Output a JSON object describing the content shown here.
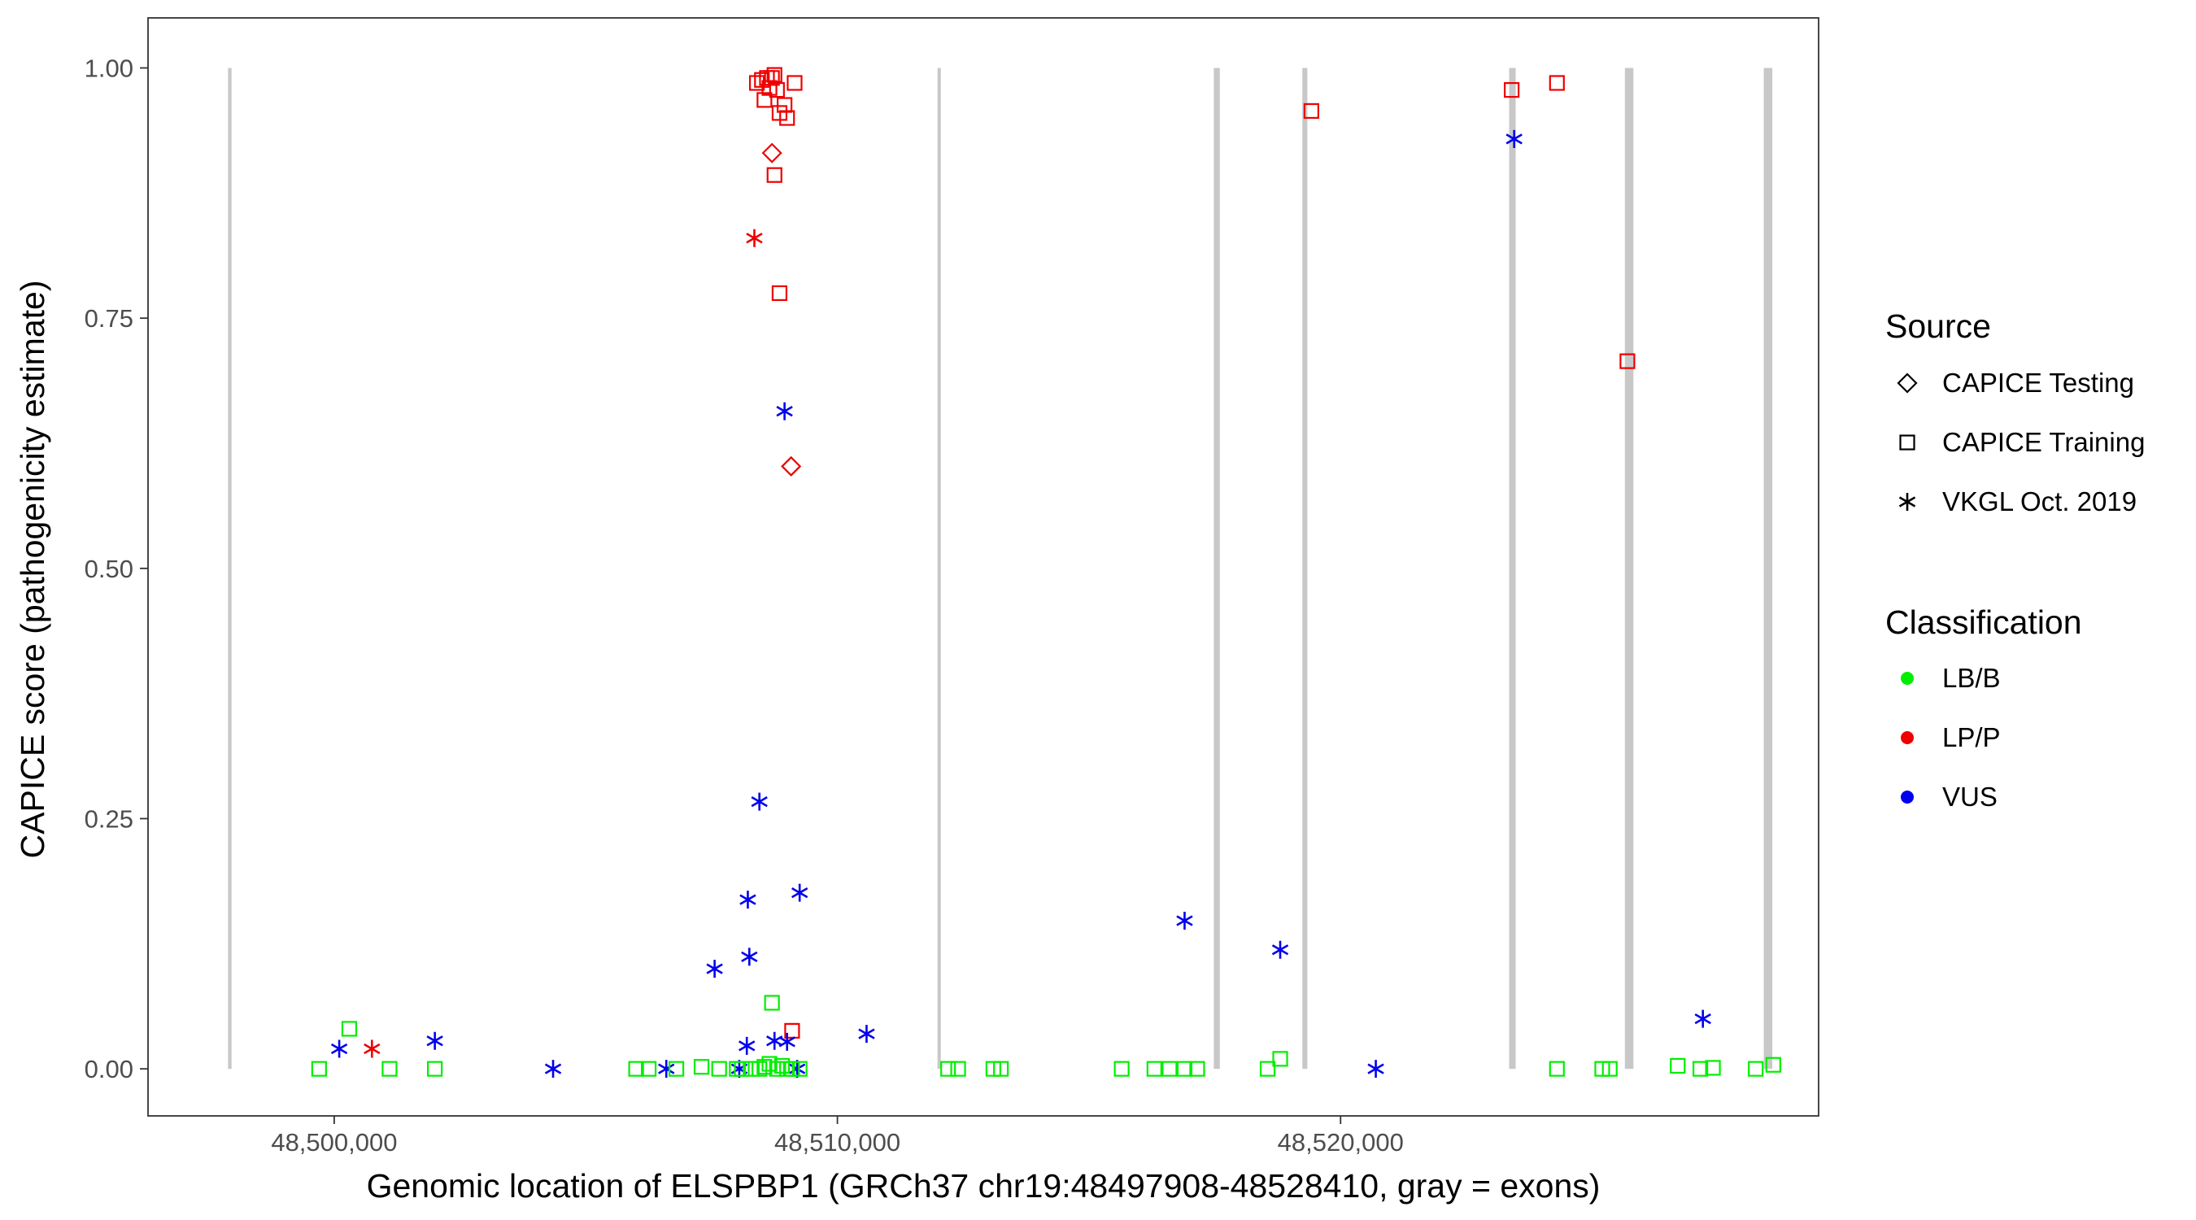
{
  "chart_data": {
    "type": "scatter",
    "xlabel": "Genomic location of ELSPBP1 (GRCh37 chr19:48497908-48528410, gray = exons)",
    "ylabel": "CAPICE score (pathogenicity estimate)",
    "xlim": [
      48496300,
      48529500
    ],
    "ylim": [
      -0.047,
      1.05
    ],
    "x_ticks": [
      {
        "value": 48500000,
        "label": "48,500,000"
      },
      {
        "value": 48510000,
        "label": "48,510,000"
      },
      {
        "value": 48520000,
        "label": "48,520,000"
      }
    ],
    "y_ticks": [
      {
        "value": 0.0,
        "label": "0.00"
      },
      {
        "value": 0.25,
        "label": "0.25"
      },
      {
        "value": 0.5,
        "label": "0.50"
      },
      {
        "value": 0.75,
        "label": "0.75"
      },
      {
        "value": 1.0,
        "label": "1.00"
      }
    ],
    "grid": false,
    "exons": [
      {
        "start": 48497890,
        "end": 48497960
      },
      {
        "start": 48511990,
        "end": 48512040
      },
      {
        "start": 48517480,
        "end": 48517600
      },
      {
        "start": 48519240,
        "end": 48519340
      },
      {
        "start": 48523350,
        "end": 48523480
      },
      {
        "start": 48525650,
        "end": 48525820
      },
      {
        "start": 48528410,
        "end": 48528580
      }
    ],
    "legend": {
      "placement": "right",
      "source_title": "Source",
      "sources": [
        {
          "key": "testing",
          "label": "CAPICE Testing",
          "shape": "diamond"
        },
        {
          "key": "training",
          "label": "CAPICE Training",
          "shape": "square"
        },
        {
          "key": "vkgl",
          "label": "VKGL Oct. 2019",
          "shape": "asterisk"
        }
      ],
      "class_title": "Classification",
      "classes": [
        {
          "key": "LB/B",
          "label": "LB/B",
          "color": "#00ee00"
        },
        {
          "key": "LP/P",
          "label": "LP/P",
          "color": "#ee0000"
        },
        {
          "key": "VUS",
          "label": "VUS",
          "color": "#0000ee"
        }
      ]
    },
    "series": [
      {
        "source": "training",
        "class": "LP/P",
        "points": [
          [
            48508400,
            0.985
          ],
          [
            48508500,
            0.988
          ],
          [
            48508600,
            0.99
          ],
          [
            48508700,
            0.99
          ],
          [
            48508750,
            0.993
          ],
          [
            48509150,
            0.985
          ],
          [
            48508650,
            0.98
          ],
          [
            48508800,
            0.978
          ],
          [
            48508550,
            0.968
          ],
          [
            48508850,
            0.955
          ],
          [
            48508950,
            0.963
          ],
          [
            48509000,
            0.95
          ],
          [
            48508750,
            0.893
          ],
          [
            48508850,
            0.775
          ],
          [
            48509100,
            0.038
          ],
          [
            48519420,
            0.957
          ],
          [
            48523400,
            0.978
          ],
          [
            48524300,
            0.985
          ],
          [
            48525700,
            0.707
          ]
        ]
      },
      {
        "source": "testing",
        "class": "LP/P",
        "points": [
          [
            48508700,
            0.915
          ],
          [
            48509080,
            0.602
          ]
        ]
      },
      {
        "source": "vkgl",
        "class": "LP/P",
        "points": [
          [
            48508350,
            0.83
          ],
          [
            48500750,
            0.02
          ]
        ]
      },
      {
        "source": "vkgl",
        "class": "VUS",
        "points": [
          [
            48508950,
            0.657
          ],
          [
            48508450,
            0.267
          ],
          [
            48508220,
            0.169
          ],
          [
            48509250,
            0.176
          ],
          [
            48508250,
            0.112
          ],
          [
            48507560,
            0.1
          ],
          [
            48510580,
            0.035
          ],
          [
            48500100,
            0.02
          ],
          [
            48502000,
            0.028
          ],
          [
            48508200,
            0.023
          ],
          [
            48508050,
            0.0
          ],
          [
            48508750,
            0.028
          ],
          [
            48509000,
            0.027
          ],
          [
            48509200,
            0.0
          ],
          [
            48504350,
            0.0
          ],
          [
            48506600,
            0.0
          ],
          [
            48516900,
            0.148
          ],
          [
            48518800,
            0.119
          ],
          [
            48520700,
            0.0
          ],
          [
            48523450,
            0.929
          ],
          [
            48527200,
            0.05
          ]
        ]
      },
      {
        "source": "training",
        "class": "LB/B",
        "points": [
          [
            48499700,
            0.0
          ],
          [
            48500300,
            0.04
          ],
          [
            48501100,
            0.0
          ],
          [
            48502000,
            0.0
          ],
          [
            48506000,
            0.0
          ],
          [
            48506250,
            0.0
          ],
          [
            48506800,
            0.0
          ],
          [
            48507300,
            0.002
          ],
          [
            48507650,
            0.0
          ],
          [
            48508000,
            0.0
          ],
          [
            48508100,
            0.0
          ],
          [
            48508300,
            0.0
          ],
          [
            48508450,
            0.0
          ],
          [
            48508550,
            0.002
          ],
          [
            48508650,
            0.005
          ],
          [
            48508700,
            0.066
          ],
          [
            48508800,
            0.0
          ],
          [
            48508900,
            0.003
          ],
          [
            48509000,
            0.0
          ],
          [
            48509100,
            0.0
          ],
          [
            48509250,
            0.0
          ],
          [
            48512200,
            0.0
          ],
          [
            48512400,
            0.0
          ],
          [
            48513100,
            0.0
          ],
          [
            48513250,
            0.0
          ],
          [
            48515650,
            0.0
          ],
          [
            48516300,
            0.0
          ],
          [
            48516600,
            0.0
          ],
          [
            48516900,
            0.0
          ],
          [
            48517150,
            0.0
          ],
          [
            48518550,
            0.0
          ],
          [
            48518800,
            0.01
          ],
          [
            48524300,
            0.0
          ],
          [
            48525200,
            0.0
          ],
          [
            48525350,
            0.0
          ],
          [
            48526700,
            0.003
          ],
          [
            48527150,
            0.0
          ],
          [
            48527400,
            0.001
          ],
          [
            48528250,
            0.0
          ],
          [
            48528600,
            0.004
          ]
        ]
      }
    ]
  }
}
